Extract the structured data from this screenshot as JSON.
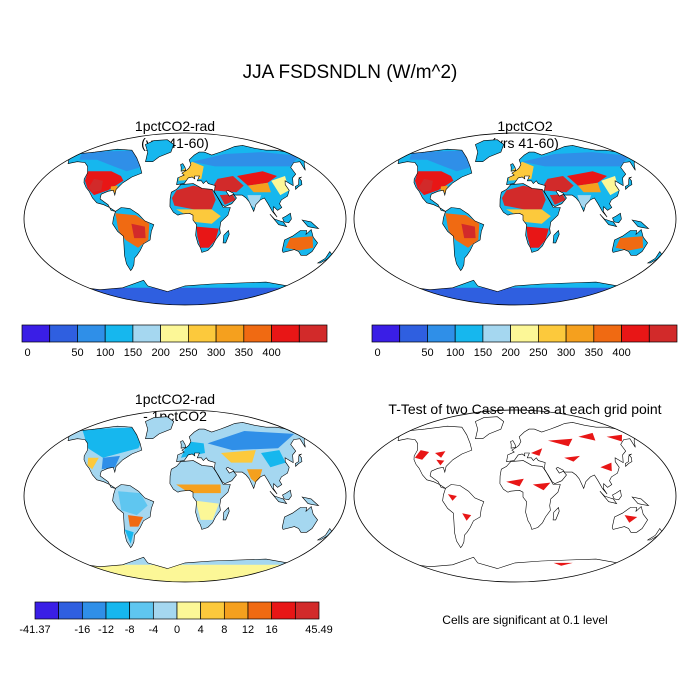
{
  "figure": {
    "title": "JJA FSDSNDLN (W/m^2)"
  },
  "panels": [
    {
      "id": "p1",
      "title_line1": "1pctCO2-rad",
      "title_line2": "(yrs 41-60)",
      "colormap": "abs"
    },
    {
      "id": "p2",
      "title_line1": "1pctCO2",
      "title_line2": "(yrs 41-60)",
      "colormap": "abs"
    },
    {
      "id": "p3",
      "title_line1": "1pctCO2-rad",
      "title_line2": "- 1pctCO2",
      "colormap": "diff"
    },
    {
      "id": "p4",
      "title_line1": "T-Test of two Case means at each grid point",
      "title_line2": "",
      "colormap": "sig"
    }
  ],
  "colorbars": {
    "abs": {
      "colors": [
        "#3a1ee6",
        "#2f5fe0",
        "#2f8fe8",
        "#16b7ee",
        "#a5d7f0",
        "#fcf797",
        "#fcc93c",
        "#f5a01e",
        "#f06a12",
        "#e81616",
        "#d22a2a"
      ],
      "labels": [
        "0",
        "50",
        "100",
        "150",
        "200",
        "250",
        "300",
        "350",
        "400"
      ]
    },
    "diff": {
      "colors": [
        "#3a1ee6",
        "#2f5fe0",
        "#2f8fe8",
        "#16b7ee",
        "#5fc6f0",
        "#a5d7f0",
        "#fcf797",
        "#fcc93c",
        "#f5a01e",
        "#f06a12",
        "#e81616",
        "#d22a2a"
      ],
      "labels": [
        "-41.37",
        "-16",
        "-12",
        "-8",
        "-4",
        "0",
        "4",
        "8",
        "12",
        "16",
        "45.49"
      ]
    }
  },
  "significance_note": "Cells are significant at 0.1 level",
  "colors": {
    "significant": "#e81616",
    "land_outline": "#000000"
  }
}
